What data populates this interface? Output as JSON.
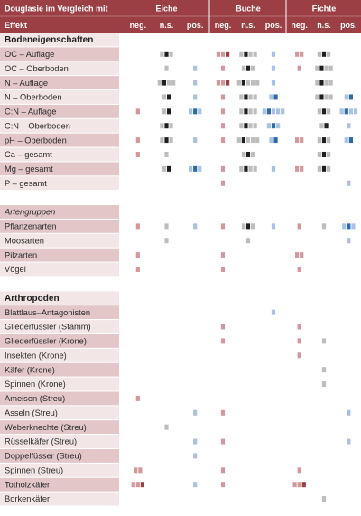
{
  "header": {
    "title": "Douglasie im Vergleich mit",
    "row_label": "Effekt",
    "groups": [
      "Eiche",
      "Buche",
      "Fichte"
    ],
    "subheaders": [
      "neg.",
      "n.s.",
      "pos."
    ]
  },
  "colors": {
    "header_bg": "#9b3f45",
    "row_dark": "#e2c6c8",
    "row_light": "#f3e6e7",
    "neg_light": "#d4989b",
    "neg_dark": "#9b3f45",
    "ns_light": "#bdbdbd",
    "ns_dark": "#1e1e1e",
    "pos_light": "#a9c1e2",
    "pos_dark": "#2a6aa8"
  },
  "legend_note": "Marks per cell: light shade = weaker, dark shade = stronger; counts approximate",
  "chart_data": {
    "type": "table",
    "columns": [
      "Eiche neg.",
      "Eiche n.s.",
      "Eiche pos.",
      "Buche neg.",
      "Buche n.s.",
      "Buche pos.",
      "Fichte neg.",
      "Fichte n.s.",
      "Fichte pos."
    ],
    "rows": [
      {
        "label": "Bodeneigenschaften",
        "kind": "section",
        "cells": [
          0,
          0,
          0,
          0,
          0,
          0,
          0,
          0,
          0
        ]
      },
      {
        "label": "OC – Auflage",
        "kind": "row",
        "cells": [
          0,
          3,
          0,
          3,
          4,
          1,
          2,
          3,
          0
        ]
      },
      {
        "label": "OC – Oberboden",
        "kind": "row",
        "cells": [
          0,
          1,
          1,
          1,
          3,
          1,
          1,
          4,
          0
        ]
      },
      {
        "label": "N – Auflage",
        "kind": "row",
        "cells": [
          0,
          4,
          1,
          3,
          5,
          1,
          0,
          4,
          0
        ]
      },
      {
        "label": "N – Oberboden",
        "kind": "row",
        "cells": [
          0,
          2,
          1,
          1,
          4,
          2,
          0,
          4,
          2
        ]
      },
      {
        "label": "C:N – Auflage",
        "kind": "row",
        "cells": [
          1,
          2,
          3,
          1,
          4,
          5,
          0,
          3,
          4
        ]
      },
      {
        "label": "C:N – Oberboden",
        "kind": "row",
        "cells": [
          0,
          3,
          0,
          1,
          4,
          3,
          0,
          2,
          1
        ]
      },
      {
        "label": "pH – Oberboden",
        "kind": "row",
        "cells": [
          1,
          3,
          1,
          1,
          5,
          2,
          2,
          3,
          2
        ]
      },
      {
        "label": "Ca – gesamt",
        "kind": "row",
        "cells": [
          1,
          1,
          0,
          0,
          3,
          0,
          0,
          3,
          0
        ]
      },
      {
        "label": "Mg – gesamt",
        "kind": "row",
        "cells": [
          0,
          2,
          3,
          1,
          4,
          1,
          2,
          3,
          0
        ]
      },
      {
        "label": "P – gesamt",
        "kind": "row",
        "cells": [
          0,
          0,
          0,
          1,
          0,
          0,
          0,
          0,
          1
        ]
      },
      {
        "label": "",
        "kind": "blank",
        "cells": [
          0,
          0,
          0,
          0,
          0,
          0,
          0,
          0,
          0
        ]
      },
      {
        "label": "Artengruppen",
        "kind": "italic",
        "cells": [
          0,
          0,
          0,
          0,
          0,
          0,
          0,
          0,
          0
        ]
      },
      {
        "label": "Pflanzenarten",
        "kind": "row",
        "cells": [
          1,
          1,
          1,
          1,
          3,
          1,
          1,
          1,
          3
        ]
      },
      {
        "label": "Moosarten",
        "kind": "row",
        "cells": [
          0,
          1,
          0,
          0,
          1,
          0,
          0,
          0,
          1
        ]
      },
      {
        "label": "Pilzarten",
        "kind": "row",
        "cells": [
          1,
          0,
          0,
          1,
          0,
          0,
          2,
          0,
          0
        ]
      },
      {
        "label": "Vögel",
        "kind": "row",
        "cells": [
          1,
          0,
          0,
          1,
          0,
          0,
          1,
          0,
          0
        ]
      },
      {
        "label": "",
        "kind": "blank",
        "cells": [
          0,
          0,
          0,
          0,
          0,
          0,
          0,
          0,
          0
        ]
      },
      {
        "label": "Arthropoden",
        "kind": "section",
        "cells": [
          0,
          0,
          0,
          0,
          0,
          0,
          0,
          0,
          0
        ]
      },
      {
        "label": "Blattlaus–Antagonisten",
        "kind": "row",
        "cells": [
          0,
          0,
          0,
          0,
          0,
          1,
          0,
          0,
          0
        ]
      },
      {
        "label": "Gliederfüssler (Stamm)",
        "kind": "row",
        "cells": [
          0,
          0,
          0,
          1,
          0,
          0,
          1,
          0,
          0
        ]
      },
      {
        "label": "Gliederfüssler (Krone)",
        "kind": "row",
        "cells": [
          0,
          0,
          0,
          1,
          0,
          0,
          1,
          1,
          0
        ]
      },
      {
        "label": "Insekten (Krone)",
        "kind": "row",
        "cells": [
          0,
          0,
          0,
          0,
          0,
          0,
          1,
          0,
          0
        ]
      },
      {
        "label": "Käfer (Krone)",
        "kind": "row",
        "cells": [
          0,
          0,
          0,
          0,
          0,
          0,
          0,
          1,
          0
        ]
      },
      {
        "label": "Spinnen (Krone)",
        "kind": "row",
        "cells": [
          0,
          0,
          0,
          0,
          0,
          0,
          0,
          1,
          0
        ]
      },
      {
        "label": "Ameisen (Streu)",
        "kind": "row",
        "cells": [
          1,
          0,
          0,
          0,
          0,
          0,
          0,
          0,
          0
        ]
      },
      {
        "label": "Asseln (Streu)",
        "kind": "row",
        "cells": [
          0,
          0,
          1,
          1,
          0,
          0,
          0,
          0,
          1
        ]
      },
      {
        "label": "Weberknechte (Streu)",
        "kind": "row",
        "cells": [
          0,
          1,
          0,
          0,
          0,
          0,
          0,
          0,
          0
        ]
      },
      {
        "label": "Rüsselkäfer (Streu)",
        "kind": "row",
        "cells": [
          0,
          0,
          1,
          1,
          0,
          0,
          0,
          0,
          1
        ]
      },
      {
        "label": "Doppelfüsser (Streu)",
        "kind": "row",
        "cells": [
          0,
          0,
          1,
          0,
          0,
          0,
          0,
          0,
          0
        ]
      },
      {
        "label": "Spinnen (Streu)",
        "kind": "row",
        "cells": [
          2,
          0,
          0,
          1,
          0,
          0,
          1,
          0,
          0
        ]
      },
      {
        "label": "Totholzkäfer",
        "kind": "row",
        "cells": [
          3,
          0,
          1,
          1,
          0,
          0,
          3,
          0,
          0
        ]
      },
      {
        "label": "Borkenkäfer",
        "kind": "row",
        "cells": [
          0,
          0,
          0,
          0,
          0,
          0,
          0,
          1,
          0
        ]
      }
    ]
  }
}
